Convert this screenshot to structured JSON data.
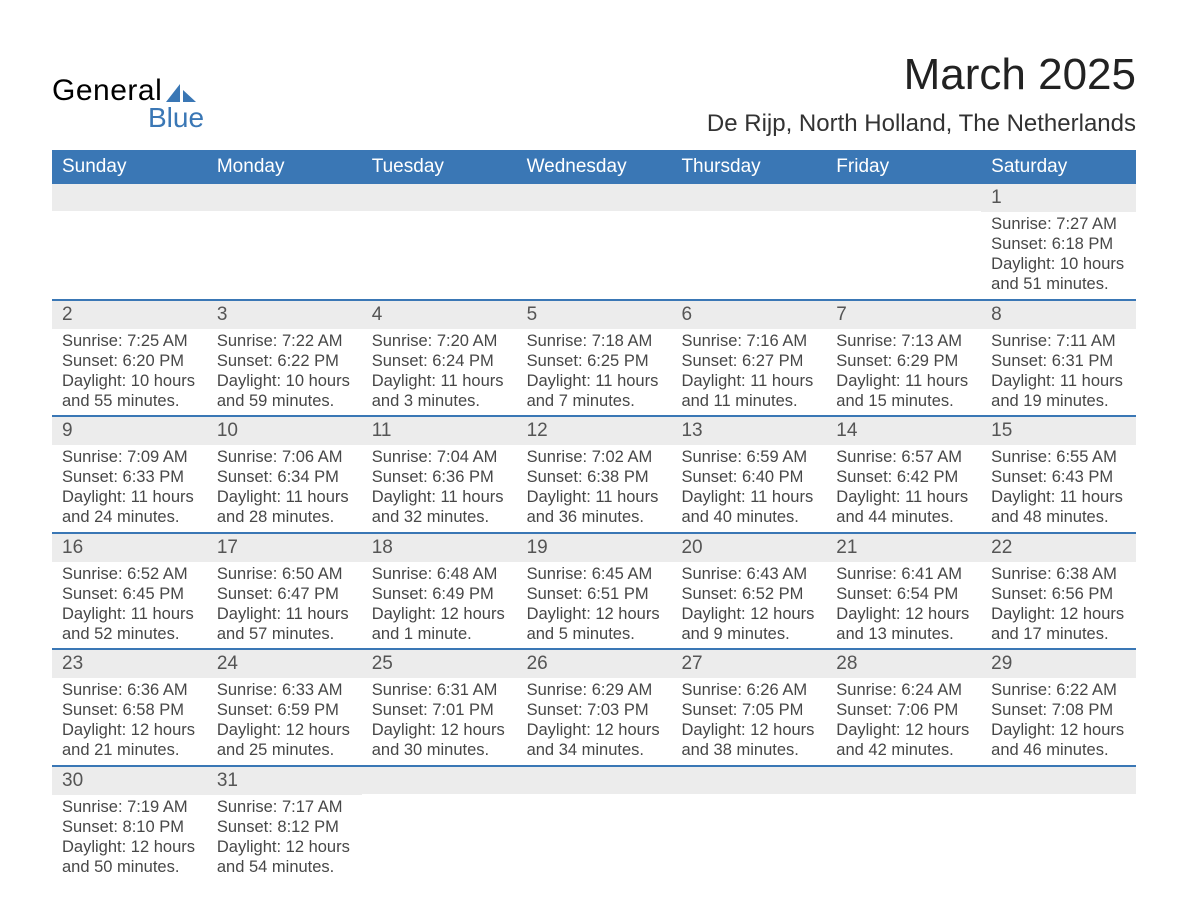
{
  "logo": {
    "line1": "General",
    "line2": "Blue",
    "brand_color": "#3a77b5"
  },
  "title": "March 2025",
  "location": "De Rijp, North Holland, The Netherlands",
  "colors": {
    "header_bg": "#3a77b5",
    "header_text": "#ffffff",
    "daynum_bg": "#ececec",
    "daynum_text": "#555555",
    "body_text": "#474747",
    "row_border": "#3a77b5"
  },
  "typography": {
    "title_fontsize": 44,
    "location_fontsize": 24,
    "weekday_fontsize": 19,
    "daynum_fontsize": 19,
    "cell_fontsize": 16.5
  },
  "weekdays": [
    "Sunday",
    "Monday",
    "Tuesday",
    "Wednesday",
    "Thursday",
    "Friday",
    "Saturday"
  ],
  "cells": [
    [
      null,
      null,
      null,
      null,
      null,
      null,
      {
        "n": "1",
        "sunrise": "Sunrise: 7:27 AM",
        "sunset": "Sunset: 6:18 PM",
        "d1": "Daylight: 10 hours",
        "d2": "and 51 minutes."
      }
    ],
    [
      {
        "n": "2",
        "sunrise": "Sunrise: 7:25 AM",
        "sunset": "Sunset: 6:20 PM",
        "d1": "Daylight: 10 hours",
        "d2": "and 55 minutes."
      },
      {
        "n": "3",
        "sunrise": "Sunrise: 7:22 AM",
        "sunset": "Sunset: 6:22 PM",
        "d1": "Daylight: 10 hours",
        "d2": "and 59 minutes."
      },
      {
        "n": "4",
        "sunrise": "Sunrise: 7:20 AM",
        "sunset": "Sunset: 6:24 PM",
        "d1": "Daylight: 11 hours",
        "d2": "and 3 minutes."
      },
      {
        "n": "5",
        "sunrise": "Sunrise: 7:18 AM",
        "sunset": "Sunset: 6:25 PM",
        "d1": "Daylight: 11 hours",
        "d2": "and 7 minutes."
      },
      {
        "n": "6",
        "sunrise": "Sunrise: 7:16 AM",
        "sunset": "Sunset: 6:27 PM",
        "d1": "Daylight: 11 hours",
        "d2": "and 11 minutes."
      },
      {
        "n": "7",
        "sunrise": "Sunrise: 7:13 AM",
        "sunset": "Sunset: 6:29 PM",
        "d1": "Daylight: 11 hours",
        "d2": "and 15 minutes."
      },
      {
        "n": "8",
        "sunrise": "Sunrise: 7:11 AM",
        "sunset": "Sunset: 6:31 PM",
        "d1": "Daylight: 11 hours",
        "d2": "and 19 minutes."
      }
    ],
    [
      {
        "n": "9",
        "sunrise": "Sunrise: 7:09 AM",
        "sunset": "Sunset: 6:33 PM",
        "d1": "Daylight: 11 hours",
        "d2": "and 24 minutes."
      },
      {
        "n": "10",
        "sunrise": "Sunrise: 7:06 AM",
        "sunset": "Sunset: 6:34 PM",
        "d1": "Daylight: 11 hours",
        "d2": "and 28 minutes."
      },
      {
        "n": "11",
        "sunrise": "Sunrise: 7:04 AM",
        "sunset": "Sunset: 6:36 PM",
        "d1": "Daylight: 11 hours",
        "d2": "and 32 minutes."
      },
      {
        "n": "12",
        "sunrise": "Sunrise: 7:02 AM",
        "sunset": "Sunset: 6:38 PM",
        "d1": "Daylight: 11 hours",
        "d2": "and 36 minutes."
      },
      {
        "n": "13",
        "sunrise": "Sunrise: 6:59 AM",
        "sunset": "Sunset: 6:40 PM",
        "d1": "Daylight: 11 hours",
        "d2": "and 40 minutes."
      },
      {
        "n": "14",
        "sunrise": "Sunrise: 6:57 AM",
        "sunset": "Sunset: 6:42 PM",
        "d1": "Daylight: 11 hours",
        "d2": "and 44 minutes."
      },
      {
        "n": "15",
        "sunrise": "Sunrise: 6:55 AM",
        "sunset": "Sunset: 6:43 PM",
        "d1": "Daylight: 11 hours",
        "d2": "and 48 minutes."
      }
    ],
    [
      {
        "n": "16",
        "sunrise": "Sunrise: 6:52 AM",
        "sunset": "Sunset: 6:45 PM",
        "d1": "Daylight: 11 hours",
        "d2": "and 52 minutes."
      },
      {
        "n": "17",
        "sunrise": "Sunrise: 6:50 AM",
        "sunset": "Sunset: 6:47 PM",
        "d1": "Daylight: 11 hours",
        "d2": "and 57 minutes."
      },
      {
        "n": "18",
        "sunrise": "Sunrise: 6:48 AM",
        "sunset": "Sunset: 6:49 PM",
        "d1": "Daylight: 12 hours",
        "d2": "and 1 minute."
      },
      {
        "n": "19",
        "sunrise": "Sunrise: 6:45 AM",
        "sunset": "Sunset: 6:51 PM",
        "d1": "Daylight: 12 hours",
        "d2": "and 5 minutes."
      },
      {
        "n": "20",
        "sunrise": "Sunrise: 6:43 AM",
        "sunset": "Sunset: 6:52 PM",
        "d1": "Daylight: 12 hours",
        "d2": "and 9 minutes."
      },
      {
        "n": "21",
        "sunrise": "Sunrise: 6:41 AM",
        "sunset": "Sunset: 6:54 PM",
        "d1": "Daylight: 12 hours",
        "d2": "and 13 minutes."
      },
      {
        "n": "22",
        "sunrise": "Sunrise: 6:38 AM",
        "sunset": "Sunset: 6:56 PM",
        "d1": "Daylight: 12 hours",
        "d2": "and 17 minutes."
      }
    ],
    [
      {
        "n": "23",
        "sunrise": "Sunrise: 6:36 AM",
        "sunset": "Sunset: 6:58 PM",
        "d1": "Daylight: 12 hours",
        "d2": "and 21 minutes."
      },
      {
        "n": "24",
        "sunrise": "Sunrise: 6:33 AM",
        "sunset": "Sunset: 6:59 PM",
        "d1": "Daylight: 12 hours",
        "d2": "and 25 minutes."
      },
      {
        "n": "25",
        "sunrise": "Sunrise: 6:31 AM",
        "sunset": "Sunset: 7:01 PM",
        "d1": "Daylight: 12 hours",
        "d2": "and 30 minutes."
      },
      {
        "n": "26",
        "sunrise": "Sunrise: 6:29 AM",
        "sunset": "Sunset: 7:03 PM",
        "d1": "Daylight: 12 hours",
        "d2": "and 34 minutes."
      },
      {
        "n": "27",
        "sunrise": "Sunrise: 6:26 AM",
        "sunset": "Sunset: 7:05 PM",
        "d1": "Daylight: 12 hours",
        "d2": "and 38 minutes."
      },
      {
        "n": "28",
        "sunrise": "Sunrise: 6:24 AM",
        "sunset": "Sunset: 7:06 PM",
        "d1": "Daylight: 12 hours",
        "d2": "and 42 minutes."
      },
      {
        "n": "29",
        "sunrise": "Sunrise: 6:22 AM",
        "sunset": "Sunset: 7:08 PM",
        "d1": "Daylight: 12 hours",
        "d2": "and 46 minutes."
      }
    ],
    [
      {
        "n": "30",
        "sunrise": "Sunrise: 7:19 AM",
        "sunset": "Sunset: 8:10 PM",
        "d1": "Daylight: 12 hours",
        "d2": "and 50 minutes."
      },
      {
        "n": "31",
        "sunrise": "Sunrise: 7:17 AM",
        "sunset": "Sunset: 8:12 PM",
        "d1": "Daylight: 12 hours",
        "d2": "and 54 minutes."
      },
      null,
      null,
      null,
      null,
      null
    ]
  ]
}
